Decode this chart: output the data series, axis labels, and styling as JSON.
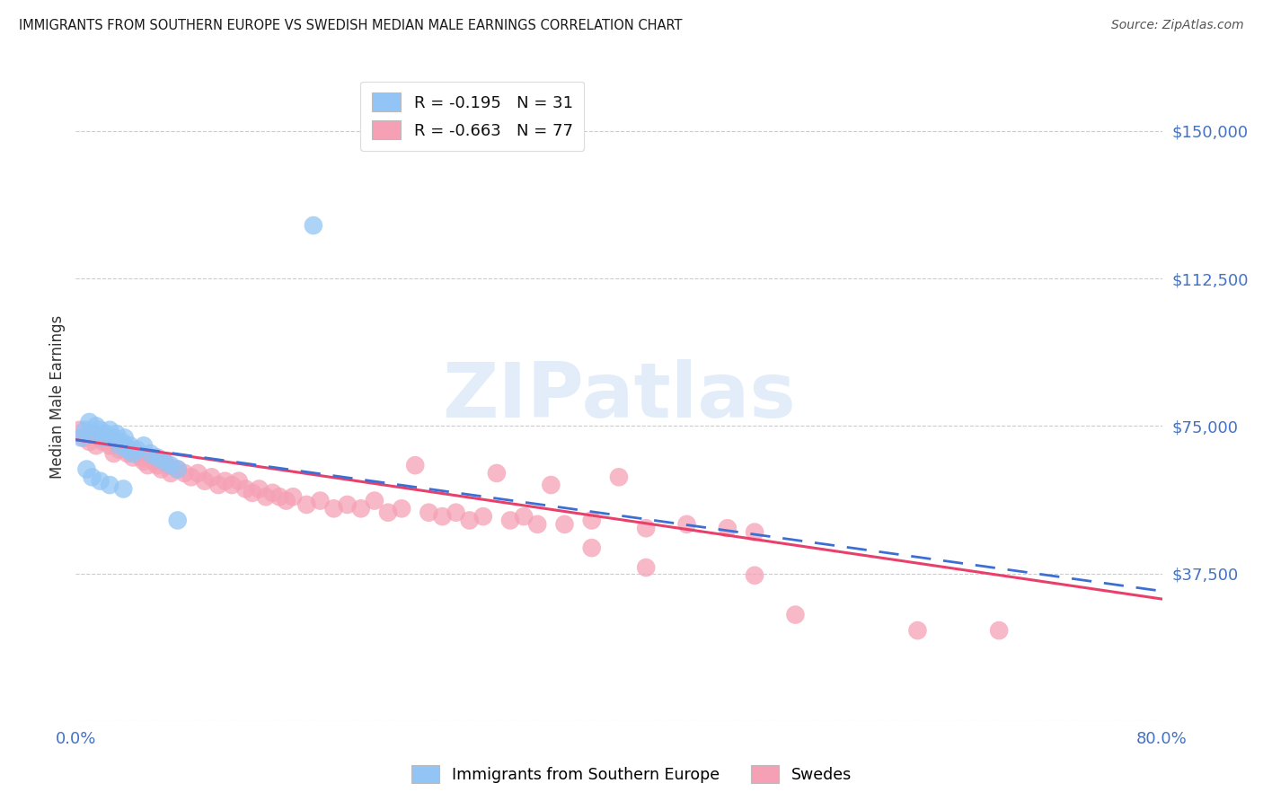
{
  "title": "IMMIGRANTS FROM SOUTHERN EUROPE VS SWEDISH MEDIAN MALE EARNINGS CORRELATION CHART",
  "source": "Source: ZipAtlas.com",
  "ylabel": "Median Male Earnings",
  "watermark": "ZIPatlas",
  "y_ticks": [
    0,
    37500,
    75000,
    112500,
    150000
  ],
  "y_tick_labels": [
    "",
    "$37,500",
    "$75,000",
    "$112,500",
    "$150,000"
  ],
  "x_lim": [
    0.0,
    0.8
  ],
  "y_lim": [
    0,
    165000
  ],
  "legend_blue_label": "R = -0.195   N = 31",
  "legend_pink_label": "R = -0.663   N = 77",
  "legend_bottom_blue": "Immigrants from Southern Europe",
  "legend_bottom_pink": "Swedes",
  "blue_color": "#92C5F5",
  "pink_color": "#F5A0B5",
  "blue_line_color": "#3B6FD4",
  "pink_line_color": "#E8406A",
  "background_color": "#FFFFFF",
  "grid_color": "#CCCCCC",
  "title_color": "#1a1a1a",
  "axis_color": "#4472C4",
  "blue_scatter": [
    [
      0.004,
      72000
    ],
    [
      0.007,
      74000
    ],
    [
      0.01,
      76000
    ],
    [
      0.012,
      73000
    ],
    [
      0.015,
      75000
    ],
    [
      0.018,
      74000
    ],
    [
      0.02,
      72000
    ],
    [
      0.022,
      73000
    ],
    [
      0.025,
      74000
    ],
    [
      0.028,
      72000
    ],
    [
      0.03,
      73000
    ],
    [
      0.032,
      70000
    ],
    [
      0.034,
      71000
    ],
    [
      0.036,
      72000
    ],
    [
      0.038,
      69000
    ],
    [
      0.04,
      70000
    ],
    [
      0.042,
      68000
    ],
    [
      0.045,
      69000
    ],
    [
      0.05,
      70000
    ],
    [
      0.055,
      68000
    ],
    [
      0.06,
      67000
    ],
    [
      0.065,
      66000
    ],
    [
      0.07,
      65000
    ],
    [
      0.075,
      64000
    ],
    [
      0.008,
      64000
    ],
    [
      0.012,
      62000
    ],
    [
      0.018,
      61000
    ],
    [
      0.025,
      60000
    ],
    [
      0.035,
      59000
    ],
    [
      0.075,
      51000
    ],
    [
      0.175,
      126000
    ]
  ],
  "pink_scatter": [
    [
      0.003,
      74000
    ],
    [
      0.006,
      72000
    ],
    [
      0.01,
      71000
    ],
    [
      0.012,
      73000
    ],
    [
      0.015,
      70000
    ],
    [
      0.018,
      72000
    ],
    [
      0.02,
      71000
    ],
    [
      0.022,
      72000
    ],
    [
      0.025,
      70000
    ],
    [
      0.028,
      68000
    ],
    [
      0.03,
      71000
    ],
    [
      0.032,
      69000
    ],
    [
      0.035,
      70000
    ],
    [
      0.038,
      68000
    ],
    [
      0.04,
      69000
    ],
    [
      0.042,
      67000
    ],
    [
      0.045,
      68000
    ],
    [
      0.048,
      67000
    ],
    [
      0.05,
      66000
    ],
    [
      0.053,
      65000
    ],
    [
      0.055,
      67000
    ],
    [
      0.058,
      66000
    ],
    [
      0.06,
      65000
    ],
    [
      0.063,
      64000
    ],
    [
      0.065,
      66000
    ],
    [
      0.068,
      65000
    ],
    [
      0.07,
      63000
    ],
    [
      0.075,
      64000
    ],
    [
      0.08,
      63000
    ],
    [
      0.085,
      62000
    ],
    [
      0.09,
      63000
    ],
    [
      0.095,
      61000
    ],
    [
      0.1,
      62000
    ],
    [
      0.105,
      60000
    ],
    [
      0.11,
      61000
    ],
    [
      0.115,
      60000
    ],
    [
      0.12,
      61000
    ],
    [
      0.125,
      59000
    ],
    [
      0.13,
      58000
    ],
    [
      0.135,
      59000
    ],
    [
      0.14,
      57000
    ],
    [
      0.145,
      58000
    ],
    [
      0.15,
      57000
    ],
    [
      0.155,
      56000
    ],
    [
      0.16,
      57000
    ],
    [
      0.17,
      55000
    ],
    [
      0.18,
      56000
    ],
    [
      0.19,
      54000
    ],
    [
      0.2,
      55000
    ],
    [
      0.21,
      54000
    ],
    [
      0.22,
      56000
    ],
    [
      0.23,
      53000
    ],
    [
      0.24,
      54000
    ],
    [
      0.25,
      65000
    ],
    [
      0.26,
      53000
    ],
    [
      0.27,
      52000
    ],
    [
      0.28,
      53000
    ],
    [
      0.29,
      51000
    ],
    [
      0.3,
      52000
    ],
    [
      0.31,
      63000
    ],
    [
      0.32,
      51000
    ],
    [
      0.33,
      52000
    ],
    [
      0.34,
      50000
    ],
    [
      0.35,
      60000
    ],
    [
      0.36,
      50000
    ],
    [
      0.38,
      51000
    ],
    [
      0.4,
      62000
    ],
    [
      0.42,
      49000
    ],
    [
      0.45,
      50000
    ],
    [
      0.48,
      49000
    ],
    [
      0.5,
      48000
    ],
    [
      0.38,
      44000
    ],
    [
      0.42,
      39000
    ],
    [
      0.5,
      37000
    ],
    [
      0.53,
      27000
    ],
    [
      0.62,
      23000
    ],
    [
      0.68,
      23000
    ]
  ],
  "blue_line_x": [
    0.0,
    0.8
  ],
  "blue_line_y": [
    71500,
    33000
  ],
  "pink_line_x": [
    0.0,
    0.8
  ],
  "pink_line_y": [
    71500,
    31000
  ]
}
